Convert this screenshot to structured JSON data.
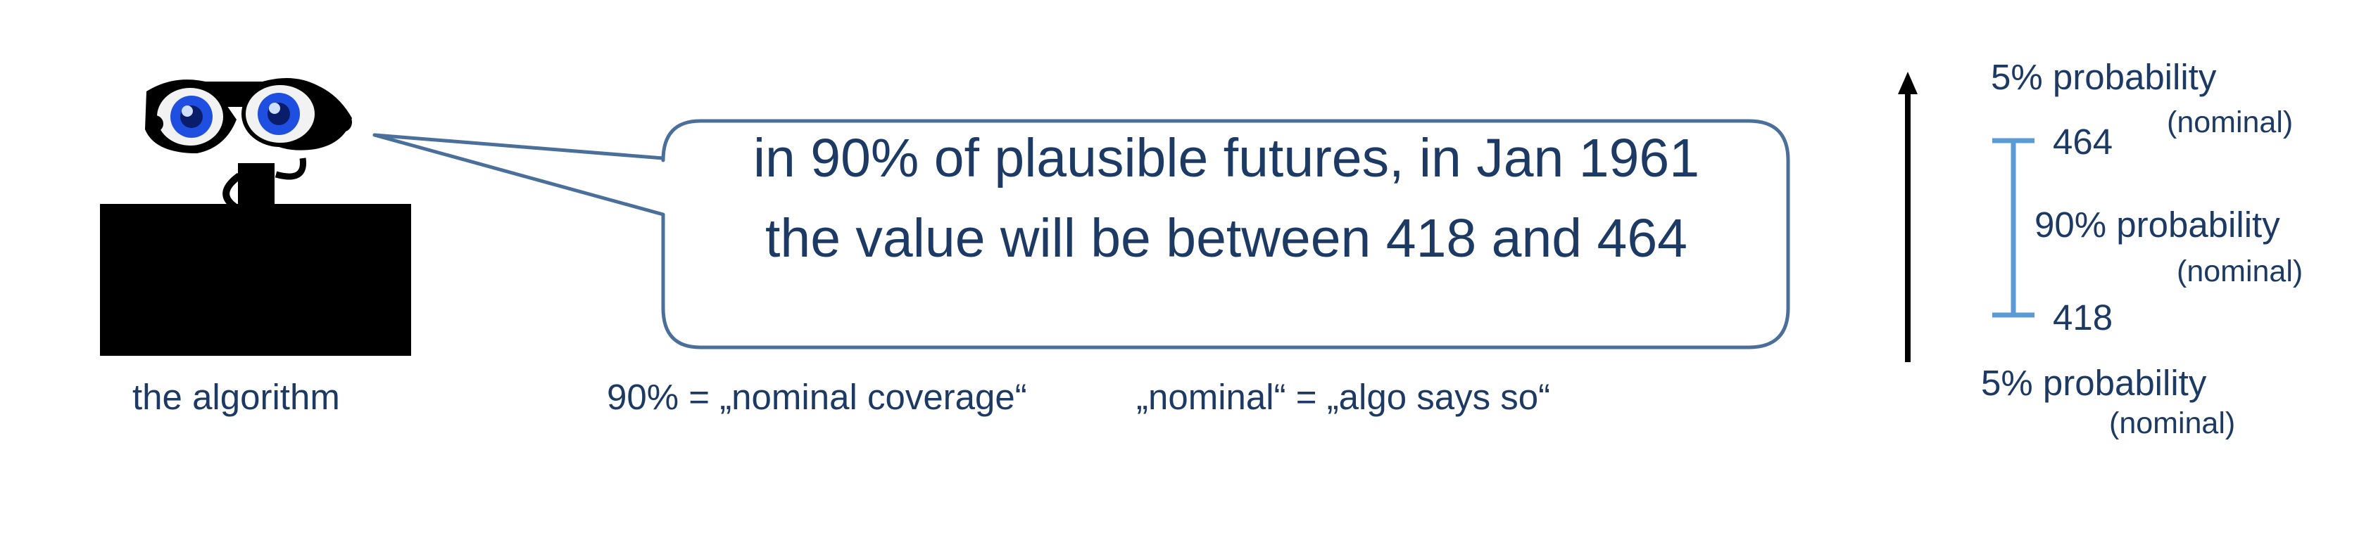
{
  "robot": {
    "icon": "robot-icon",
    "caption": "the algorithm"
  },
  "speech_bubble": {
    "line1": "in 90% of plausible futures, in Jan 1961",
    "line2": "the value will be between 418 and 464"
  },
  "notes": {
    "nominal_coverage": "90% = „nominal coverage“",
    "nominal_meaning": "„nominal“ = „algo says so“"
  },
  "interval": {
    "upper_value": "464",
    "lower_value": "418",
    "top_label": "5% probability",
    "top_sub": "(nominal)",
    "middle_label": "90% probability",
    "middle_sub": "(nominal)",
    "bottom_label": "5% probability",
    "bottom_sub": "(nominal)"
  },
  "colors": {
    "text": "#1c3a63",
    "bubble_border": "#4a6f9a",
    "interval_bar": "#5b9bd5",
    "arrow": "#000000",
    "eye_blue": "#1e4fe0"
  }
}
